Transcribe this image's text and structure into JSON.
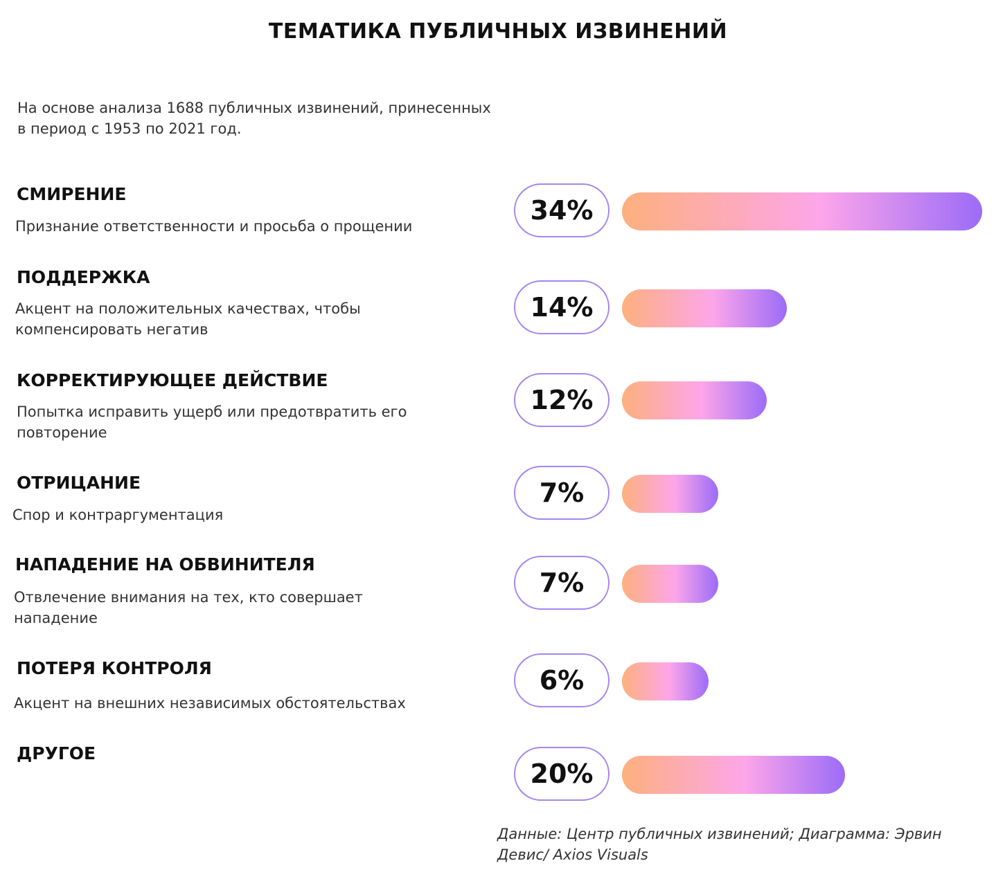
{
  "title": "ТЕМАТИКА ПУБЛИЧНЫХ ИЗВИНЕНИЙ",
  "subtitle": "На основе анализа 1688 публичных извинений, принесенных в период с 1953 по 2021 год.",
  "source": "Данные: Центр публичных извинений; Диаграмма: Эрвин Девис/ Axios Visuals",
  "colors": {
    "gradient_start": "#fdb07d",
    "gradient_mid": "#fda6ea",
    "gradient_end": "#9b6cf7",
    "pill_border": "#a387f2"
  },
  "items": [
    {
      "title": "СМИРЕНИЕ",
      "desc": "Признание ответственности и просьба о прощении",
      "label": "34%"
    },
    {
      "title": "ПОДДЕРЖКА",
      "desc": "Акцент на положительных качествах, чтобы компенсировать негатив",
      "label": "14%"
    },
    {
      "title": "КОРРЕКТИРУЮЩЕЕ ДЕЙСТВИЕ",
      "desc": "Попытка исправить ущерб или предотвратить его повторение",
      "label": "12%"
    },
    {
      "title": "ОТРИЦАНИЕ",
      "desc": "Спор и контраргументация",
      "label": "7%"
    },
    {
      "title": "НАПАДЕНИЕ НА ОБВИНИТЕЛЯ",
      "desc": "Отвлечение внимания на тех, кто совершает нападение",
      "label": "7%"
    },
    {
      "title": "ПОТЕРЯ КОНТРОЛЯ",
      "desc": "Акцент на внешних независимых обстоятельствах",
      "label": "6%"
    },
    {
      "title": "ДРУГОЕ",
      "desc": "",
      "label": "20%"
    }
  ],
  "chart_data": {
    "type": "bar",
    "orientation": "horizontal",
    "categories": [
      "СМИРЕНИЕ",
      "ПОДДЕРЖКА",
      "КОРРЕКТИРУЮЩЕЕ ДЕЙСТВИЕ",
      "ОТРИЦАНИЕ",
      "НАПАДЕНИЕ НА ОБВИНИТЕЛЯ",
      "ПОТЕРЯ КОНТРОЛЯ",
      "ДРУГОЕ"
    ],
    "values": [
      34,
      14,
      12,
      7,
      7,
      6,
      20
    ],
    "unit": "%"
  }
}
